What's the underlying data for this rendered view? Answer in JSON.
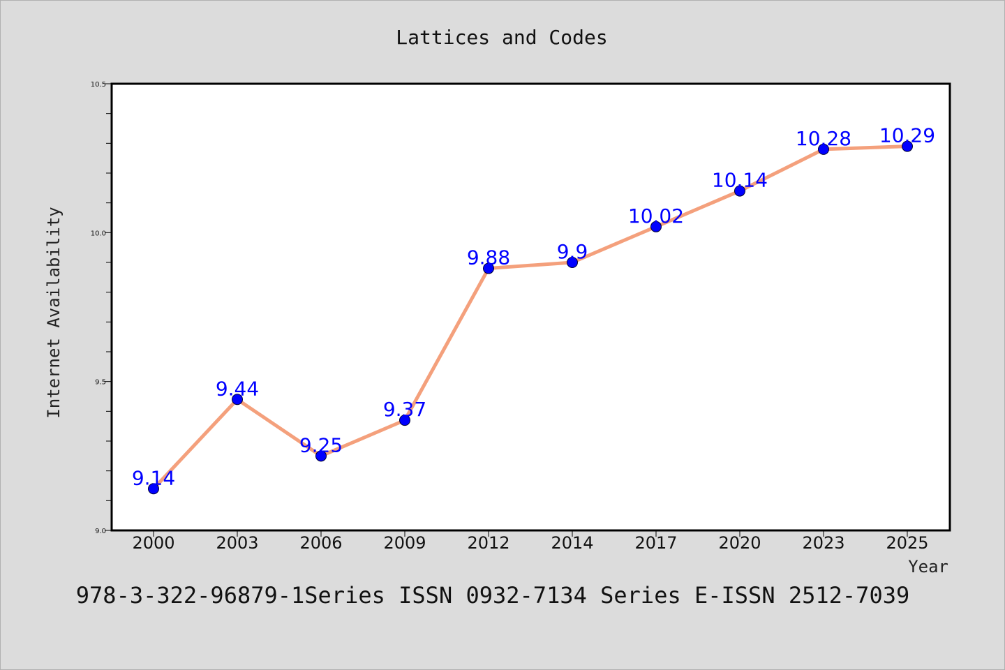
{
  "chart_data": {
    "type": "line",
    "title": "Lattices and Codes",
    "xlabel": "Year",
    "ylabel": "Internet Availability",
    "categories": [
      "2000",
      "2003",
      "2006",
      "2009",
      "2012",
      "2014",
      "2017",
      "2020",
      "2023",
      "2025"
    ],
    "series": [
      {
        "values": [
          9.14,
          9.44,
          9.25,
          9.37,
          9.88,
          9.9,
          10.02,
          10.14,
          10.28,
          10.29
        ],
        "data_labels": [
          "9.14",
          "9.44",
          "9.25",
          "9.37",
          "9.88",
          "9.9",
          "10.02",
          "10.14",
          "10.28",
          "10.29"
        ],
        "line_color": "#f4a07c",
        "marker_color": "#0000ff"
      }
    ],
    "ylim": [
      9.0,
      10.5
    ],
    "yticks": [
      "9.0",
      "9.5",
      "10.0",
      "10.5"
    ],
    "ytick_values": [
      9.0,
      9.5,
      10.0,
      10.5
    ],
    "grid": false,
    "legend": "none"
  },
  "footer": {
    "text": "978-3-322-96879-1Series ISSN 0932-7134 Series E-ISSN 2512-7039"
  },
  "colors": {
    "background": "#dcdcdc",
    "plot_background": "#ffffff",
    "data_label": "#0000ff"
  }
}
